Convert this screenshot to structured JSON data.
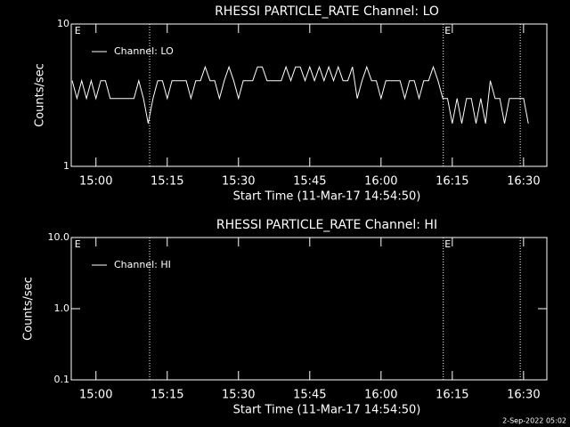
{
  "chart_data": [
    {
      "type": "line",
      "title": "RHESSI PARTICLE_RATE Channel: LO",
      "xlabel": "Start Time (11-Mar-17 14:54:50)",
      "ylabel": "Counts/sec",
      "log_y": true,
      "ylim": [
        1,
        10
      ],
      "yticks": [
        1,
        10
      ],
      "xlim": [
        894.8,
        994.9
      ],
      "xticks": [
        {
          "value": 900,
          "label": "15:00"
        },
        {
          "value": 915,
          "label": "15:15"
        },
        {
          "value": 930,
          "label": "15:30"
        },
        {
          "value": 945,
          "label": "15:45"
        },
        {
          "value": 960,
          "label": "16:00"
        },
        {
          "value": 975,
          "label": "16:15"
        },
        {
          "value": 990,
          "label": "16:30"
        }
      ],
      "flag_lines": [
        911.3,
        973.1,
        989.3
      ],
      "annotations": [
        {
          "text": "E",
          "x": 895.5
        },
        {
          "text": "E",
          "x": 973.4
        }
      ],
      "legend": "upper left",
      "x": [
        895,
        896,
        897,
        898,
        899,
        900,
        901,
        902,
        903,
        904,
        905,
        906,
        907,
        908,
        909,
        910,
        911,
        912,
        913,
        914,
        915,
        916,
        917,
        918,
        919,
        920,
        921,
        922,
        923,
        924,
        925,
        926,
        927,
        928,
        929,
        930,
        931,
        932,
        933,
        934,
        935,
        936,
        937,
        938,
        939,
        940,
        941,
        942,
        943,
        944,
        945,
        946,
        947,
        948,
        949,
        950,
        951,
        952,
        953,
        954,
        955,
        956,
        957,
        958,
        959,
        960,
        961,
        962,
        963,
        964,
        965,
        966,
        967,
        968,
        969,
        970,
        971,
        972,
        973,
        974,
        975,
        976,
        977,
        978,
        979,
        980,
        981,
        982,
        983,
        984,
        985,
        986,
        987,
        988,
        989,
        990,
        991
      ],
      "series": [
        {
          "name": "Channel: LO",
          "color": "#ffffff",
          "values": [
            4,
            3,
            4,
            3,
            4,
            3,
            4,
            4,
            3,
            3,
            3,
            3,
            3,
            3,
            4,
            3,
            2,
            3,
            4,
            4,
            3,
            4,
            4,
            4,
            4,
            3,
            4,
            4,
            5,
            4,
            4,
            3,
            4,
            5,
            4,
            3,
            4,
            4,
            4,
            5,
            5,
            4,
            4,
            4,
            4,
            5,
            4,
            5,
            5,
            4,
            5,
            4,
            5,
            4,
            5,
            4,
            5,
            4,
            4,
            5,
            3,
            4,
            5,
            4,
            4,
            3,
            4,
            4,
            4,
            4,
            3,
            4,
            4,
            3,
            4,
            4,
            5,
            4,
            3,
            3,
            2,
            3,
            2,
            3,
            3,
            2,
            3,
            2,
            4,
            3,
            3,
            2,
            3,
            3,
            3,
            3,
            2
          ]
        }
      ]
    },
    {
      "type": "line",
      "title": "RHESSI PARTICLE_RATE Channel: HI",
      "xlabel": "Start Time (11-Mar-17 14:54:50)",
      "ylabel": "Counts/sec",
      "log_y": true,
      "ylim": [
        0.1,
        10
      ],
      "yticks": [
        0.1,
        {
          "value": 1,
          "label": "1.0"
        },
        {
          "value": 10,
          "label": "10.0"
        }
      ],
      "xlim": [
        894.8,
        994.9
      ],
      "xticks": [
        {
          "value": 900,
          "label": "15:00"
        },
        {
          "value": 915,
          "label": "15:15"
        },
        {
          "value": 930,
          "label": "15:30"
        },
        {
          "value": 945,
          "label": "15:45"
        },
        {
          "value": 960,
          "label": "16:00"
        },
        {
          "value": 975,
          "label": "16:15"
        },
        {
          "value": 990,
          "label": "16:30"
        }
      ],
      "flag_lines": [
        911.3,
        973.1,
        989.3
      ],
      "annotations": [
        {
          "text": "E",
          "x": 895.5
        },
        {
          "text": "E",
          "x": 973.4
        }
      ],
      "legend": "upper left",
      "x": [],
      "series": [
        {
          "name": "Channel: HI",
          "color": "#ffffff",
          "values": []
        }
      ]
    }
  ],
  "timestamp": "2-Sep-2022 05:02"
}
